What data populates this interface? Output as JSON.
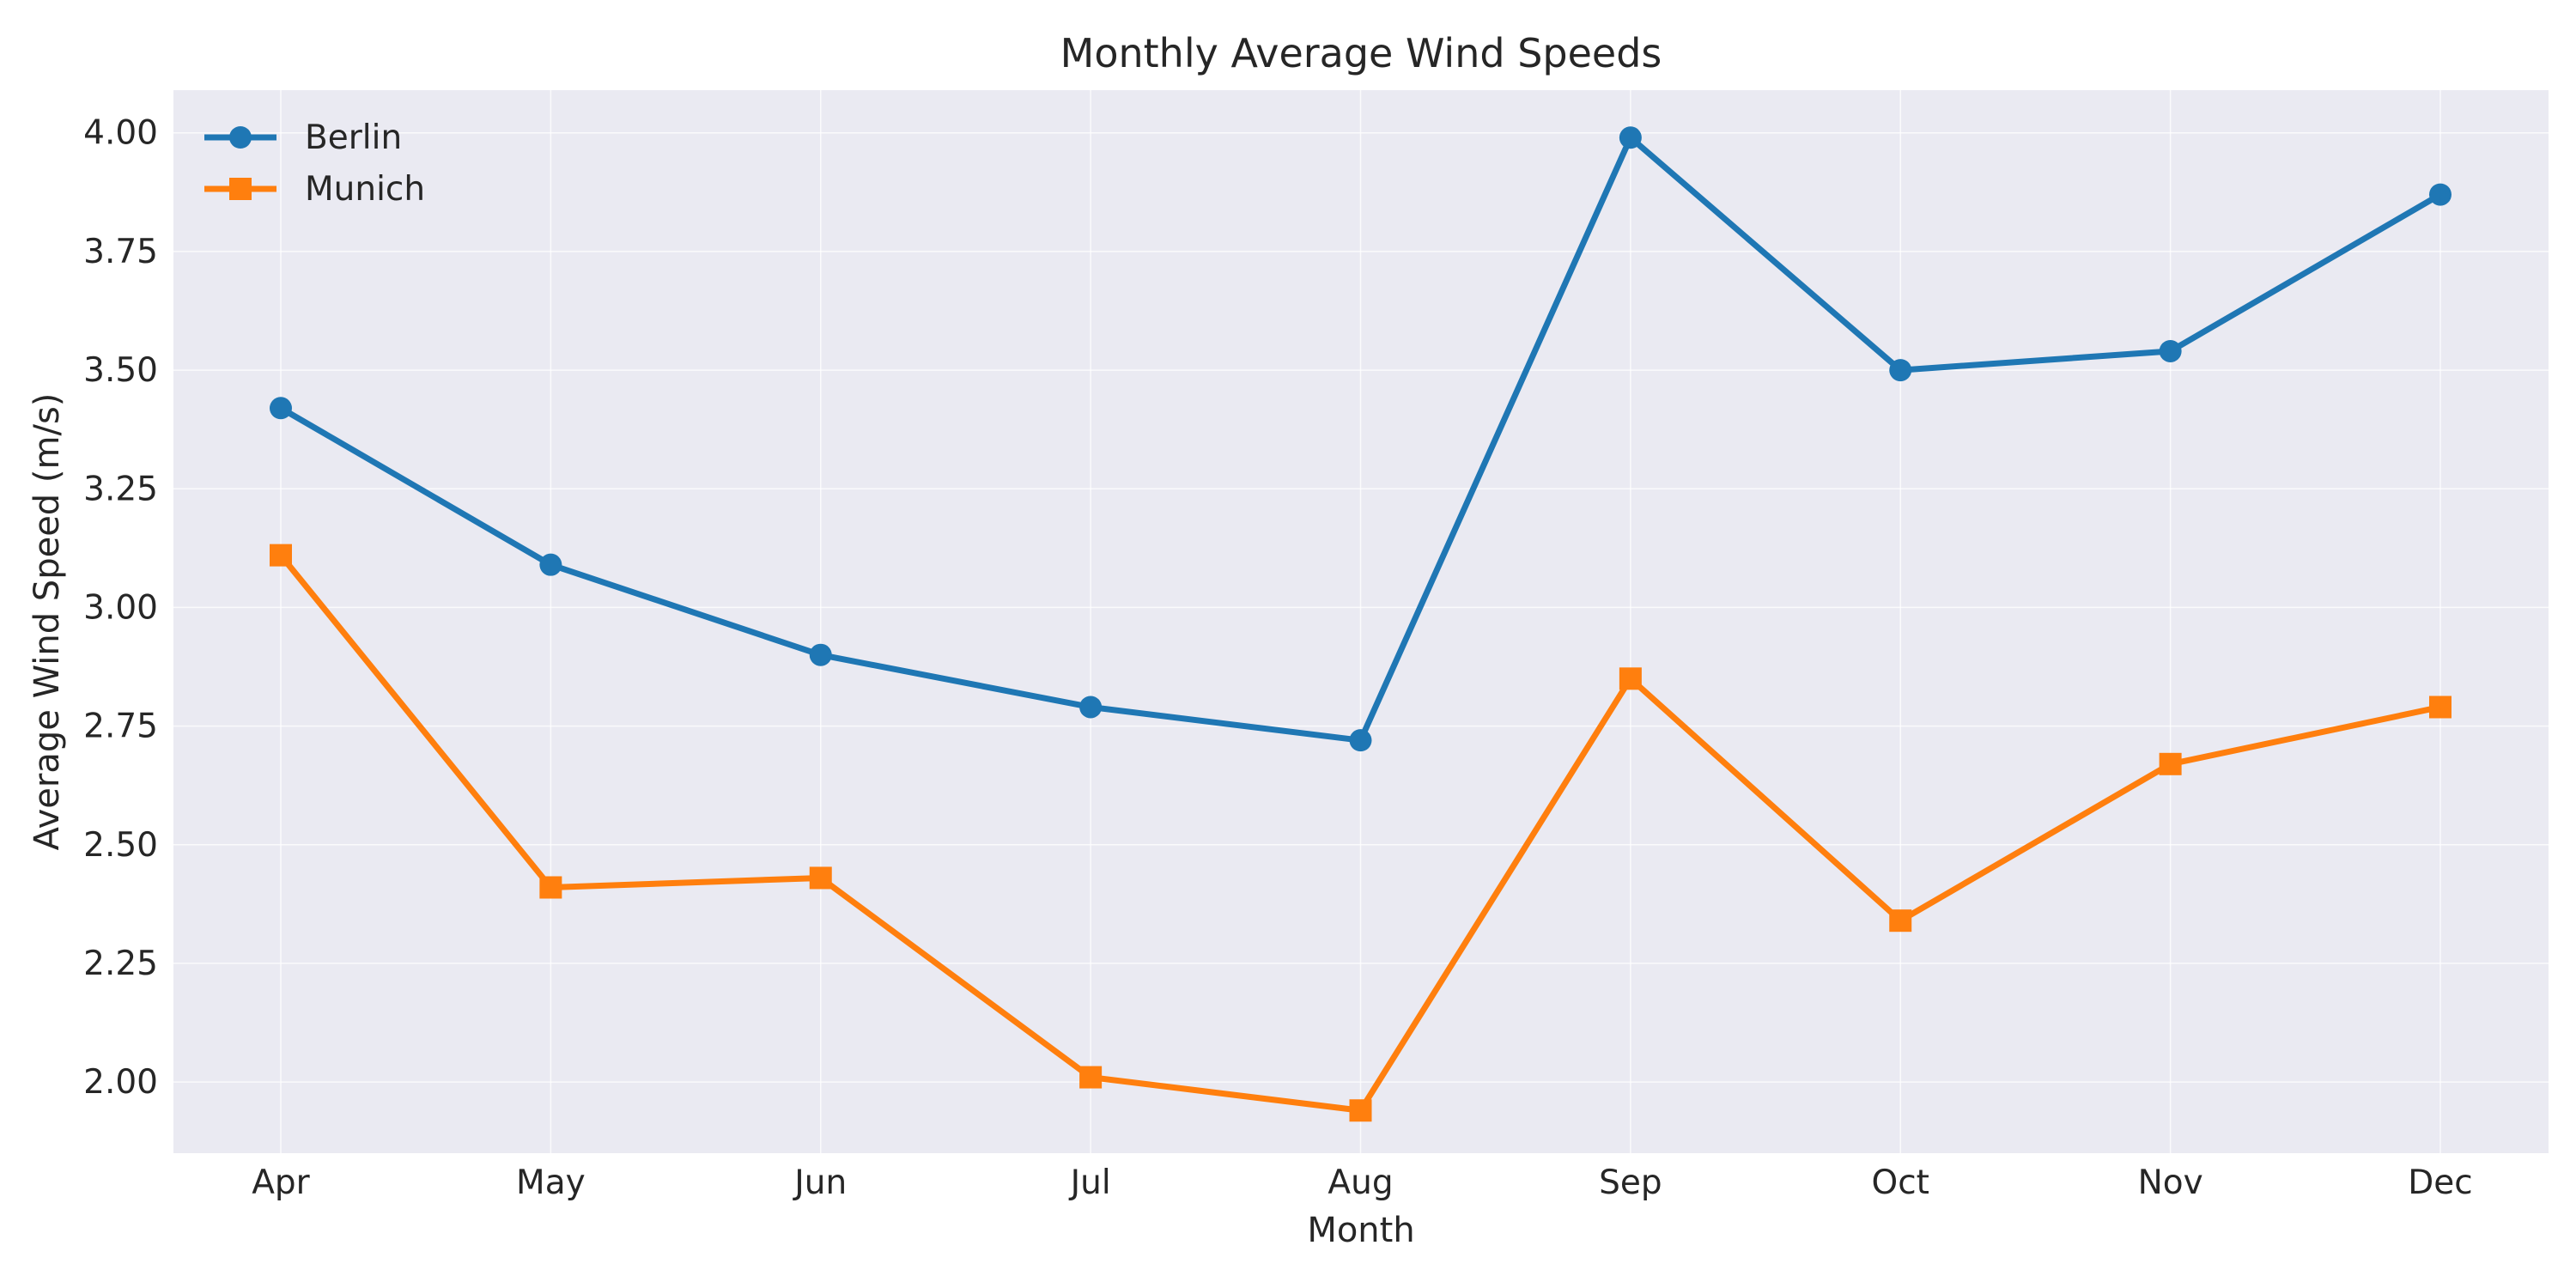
{
  "chart_data": {
    "type": "line",
    "title": "Monthly Average Wind Speeds",
    "xlabel": "Month",
    "ylabel": "Average Wind Speed (m/s)",
    "categories": [
      "Apr",
      "May",
      "Jun",
      "Jul",
      "Aug",
      "Sep",
      "Oct",
      "Nov",
      "Dec"
    ],
    "ylim": [
      1.85,
      4.09
    ],
    "yticks": [
      "2.00",
      "2.25",
      "2.50",
      "2.75",
      "3.00",
      "3.25",
      "3.50",
      "3.75",
      "4.00"
    ],
    "grid": true,
    "legend_position": "top-left",
    "colors": {
      "plot_background": "#eaeaf2",
      "grid": "#ffffff"
    },
    "series": [
      {
        "name": "Berlin",
        "color": "#1f77b4",
        "marker": "circle",
        "values": [
          3.42,
          3.09,
          2.9,
          2.79,
          2.72,
          3.99,
          3.5,
          3.54,
          3.87
        ]
      },
      {
        "name": "Munich",
        "color": "#ff7f0e",
        "marker": "square",
        "values": [
          3.11,
          2.41,
          2.43,
          2.01,
          1.94,
          2.85,
          2.34,
          2.67,
          2.79
        ]
      }
    ]
  }
}
